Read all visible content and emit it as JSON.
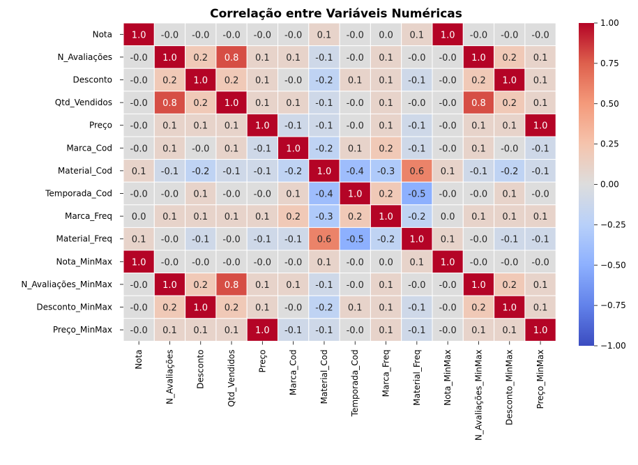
{
  "chart_data": {
    "type": "heatmap",
    "title": "Correlação entre Variáveis Numéricas",
    "rows": [
      "Nota",
      "N_Avaliações",
      "Desconto",
      "Qtd_Vendidos",
      "Preço",
      "Marca_Cod",
      "Material_Cod",
      "Temporada_Cod",
      "Marca_Freq",
      "Material_Freq",
      "Nota_MinMax",
      "N_Avaliações_MinMax",
      "Desconto_MinMax",
      "Preço_MinMax"
    ],
    "columns": [
      "Nota",
      "N_Avaliações",
      "Desconto",
      "Qtd_Vendidos",
      "Preço",
      "Marca_Cod",
      "Material_Cod",
      "Temporada_Cod",
      "Marca_Freq",
      "Material_Freq",
      "Nota_MinMax",
      "N_Avaliações_MinMax",
      "Desconto_MinMax",
      "Preço_MinMax"
    ],
    "values": [
      [
        1.0,
        -0.0,
        -0.0,
        -0.0,
        -0.0,
        -0.0,
        0.1,
        -0.0,
        0.0,
        0.1,
        1.0,
        -0.0,
        -0.0,
        -0.0
      ],
      [
        -0.0,
        1.0,
        0.2,
        0.8,
        0.1,
        0.1,
        -0.1,
        -0.0,
        0.1,
        -0.0,
        -0.0,
        1.0,
        0.2,
        0.1
      ],
      [
        -0.0,
        0.2,
        1.0,
        0.2,
        0.1,
        -0.0,
        -0.2,
        0.1,
        0.1,
        -0.1,
        -0.0,
        0.2,
        1.0,
        0.1
      ],
      [
        -0.0,
        0.8,
        0.2,
        1.0,
        0.1,
        0.1,
        -0.1,
        -0.0,
        0.1,
        -0.0,
        -0.0,
        0.8,
        0.2,
        0.1
      ],
      [
        -0.0,
        0.1,
        0.1,
        0.1,
        1.0,
        -0.1,
        -0.1,
        -0.0,
        0.1,
        -0.1,
        -0.0,
        0.1,
        0.1,
        1.0
      ],
      [
        -0.0,
        0.1,
        -0.0,
        0.1,
        -0.1,
        1.0,
        -0.2,
        0.1,
        0.2,
        -0.1,
        -0.0,
        0.1,
        -0.0,
        -0.1
      ],
      [
        0.1,
        -0.1,
        -0.2,
        -0.1,
        -0.1,
        -0.2,
        1.0,
        -0.4,
        -0.3,
        0.6,
        0.1,
        -0.1,
        -0.2,
        -0.1
      ],
      [
        -0.0,
        -0.0,
        0.1,
        -0.0,
        -0.0,
        0.1,
        -0.4,
        1.0,
        0.2,
        -0.5,
        -0.0,
        -0.0,
        0.1,
        -0.0
      ],
      [
        0.0,
        0.1,
        0.1,
        0.1,
        0.1,
        0.2,
        -0.3,
        0.2,
        1.0,
        -0.2,
        0.0,
        0.1,
        0.1,
        0.1
      ],
      [
        0.1,
        -0.0,
        -0.1,
        -0.0,
        -0.1,
        -0.1,
        0.6,
        -0.5,
        -0.2,
        1.0,
        0.1,
        -0.0,
        -0.1,
        -0.1
      ],
      [
        1.0,
        -0.0,
        -0.0,
        -0.0,
        -0.0,
        -0.0,
        0.1,
        -0.0,
        0.0,
        0.1,
        1.0,
        -0.0,
        -0.0,
        -0.0
      ],
      [
        -0.0,
        1.0,
        0.2,
        0.8,
        0.1,
        0.1,
        -0.1,
        -0.0,
        0.1,
        -0.0,
        -0.0,
        1.0,
        0.2,
        0.1
      ],
      [
        -0.0,
        0.2,
        1.0,
        0.2,
        0.1,
        -0.0,
        -0.2,
        0.1,
        0.1,
        -0.1,
        -0.0,
        0.2,
        1.0,
        0.1
      ],
      [
        -0.0,
        0.1,
        0.1,
        0.1,
        1.0,
        -0.1,
        -0.1,
        -0.0,
        0.1,
        -0.1,
        -0.0,
        0.1,
        0.1,
        1.0
      ]
    ],
    "colormap": "coolwarm",
    "vmin": -1.0,
    "vmax": 1.0,
    "colorbar_ticks": [
      "1.00",
      "0.75",
      "0.50",
      "0.25",
      "0.00",
      "−0.25",
      "−0.50",
      "−0.75",
      "−1.00"
    ],
    "colorbar_tick_values": [
      1.0,
      0.75,
      0.5,
      0.25,
      0.0,
      -0.25,
      -0.5,
      -0.75,
      -1.0
    ],
    "cell_format": "one decimal",
    "grid_lines": "white",
    "legend": "colorbar-right"
  }
}
